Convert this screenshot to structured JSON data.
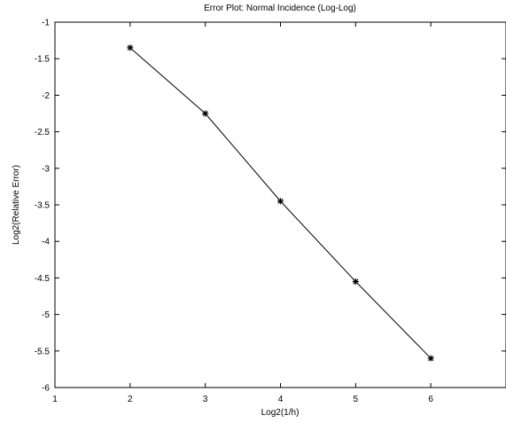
{
  "chart_data": {
    "type": "line",
    "title": "Error Plot: Normal Incidence (Log-Log)",
    "xlabel": "Log2(1/h)",
    "ylabel": "Log2(Relative Error)",
    "xlim": [
      1,
      7
    ],
    "ylim": [
      -6,
      -1
    ],
    "x_ticks": [
      1,
      2,
      3,
      4,
      5,
      6
    ],
    "x_tick_labels": [
      "1",
      "2",
      "3",
      "4",
      "5",
      "6"
    ],
    "y_ticks": [
      -1,
      -1.5,
      -2,
      -2.5,
      -3,
      -3.5,
      -4,
      -4.5,
      -5,
      -5.5,
      -6
    ],
    "y_tick_labels": [
      "-1",
      "-1.5",
      "-2",
      "-2.5",
      "-3",
      "-3.5",
      "-4",
      "-4.5",
      "-5",
      "-5.5",
      "-6"
    ],
    "grid": false,
    "marker": "*",
    "series": [
      {
        "x": [
          2,
          3,
          4,
          5,
          6
        ],
        "y": [
          -1.35,
          -2.25,
          -3.45,
          -4.55,
          -5.6
        ]
      }
    ],
    "colors": {
      "line": "#000000",
      "axes": "#000000",
      "background": "#ffffff"
    }
  }
}
